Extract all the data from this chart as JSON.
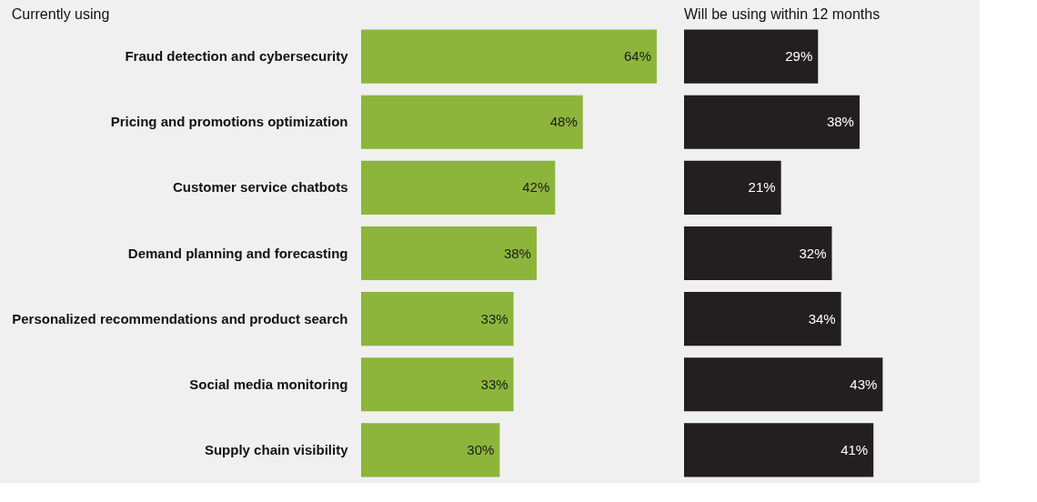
{
  "chart_data": [
    {
      "type": "bar",
      "orientation": "horizontal",
      "title": "Currently using",
      "categories": [
        "Fraud detection and cybersecurity",
        "Pricing and promotions optimization",
        "Customer service chatbots",
        "Demand planning and forecasting",
        "Personalized recommendations and product search",
        "Social media monitoring",
        "Supply chain visibility"
      ],
      "values": [
        64,
        48,
        42,
        38,
        33,
        33,
        30
      ],
      "value_labels": [
        "64%",
        "48%",
        "42%",
        "38%",
        "33%",
        "33%",
        "30%"
      ],
      "color": "#8db53c",
      "tick_labels": "y"
    },
    {
      "type": "bar",
      "orientation": "horizontal",
      "title": "Will be using within 12 months",
      "categories": [
        null,
        null,
        null,
        null,
        null,
        null,
        null
      ],
      "values": [
        29,
        38,
        21,
        32,
        34,
        43,
        41
      ],
      "value_labels": [
        "29%",
        "38%",
        "21%",
        "32%",
        "34%",
        "43%",
        "41%"
      ],
      "color": "#231f20",
      "tick_labels": false
    }
  ]
}
